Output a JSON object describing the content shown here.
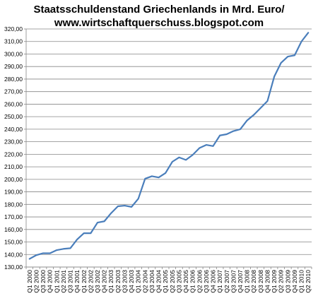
{
  "chart_data": {
    "type": "line",
    "title": "Staatsschuldenstand Griechenlands in Mrd. Euro/",
    "subtitle": "www.wirtschaftquerschuss.blogspot.com",
    "xlabel": "",
    "ylabel": "",
    "ylim": [
      130,
      320
    ],
    "y_tick_step": 10,
    "grid": "horizontal",
    "line_color": "#4a7ebb",
    "categories": [
      "Q1 2000",
      "Q2 2000",
      "Q3 2000",
      "Q4 2000",
      "Q1 2001",
      "Q2 2001",
      "Q3 2001",
      "Q4 2001",
      "Q1 2002",
      "Q2 2002",
      "Q3 2002",
      "Q4 2002",
      "Q1 2003",
      "Q2 2003",
      "Q3 2003",
      "Q4 2003",
      "Q1 2004",
      "Q2 2004",
      "Q3 2004",
      "Q4 2004",
      "Q1 2005",
      "Q2 2005",
      "Q3 2005",
      "Q4 2005",
      "Q1 2006",
      "Q2 2006",
      "Q3 2006",
      "Q4 2006",
      "Q1 2007",
      "Q2 2007",
      "Q3 2007",
      "Q4 2007",
      "Q1 2008",
      "Q2 2008",
      "Q3 2008",
      "Q4 2008",
      "Q1 2009",
      "Q2 2009",
      "Q3 2009",
      "Q4 2009",
      "Q1 2010",
      "Q2 2010"
    ],
    "values": [
      136.5,
      139.5,
      141.0,
      141.0,
      143.5,
      144.5,
      145.0,
      152.0,
      157.0,
      157.0,
      165.5,
      166.5,
      173.0,
      178.5,
      179.0,
      178.0,
      184.5,
      200.5,
      202.5,
      201.5,
      205.0,
      214.0,
      217.5,
      215.5,
      219.5,
      225.0,
      227.5,
      226.5,
      235.0,
      236.0,
      238.5,
      240.0,
      247.0,
      251.5,
      257.0,
      262.5,
      282.0,
      293.0,
      298.0,
      299.0,
      310.0,
      317.0
    ],
    "y_ticks": [
      "130,00",
      "140,00",
      "150,00",
      "160,00",
      "170,00",
      "180,00",
      "190,00",
      "200,00",
      "210,00",
      "220,00",
      "230,00",
      "240,00",
      "250,00",
      "260,00",
      "270,00",
      "280,00",
      "290,00",
      "300,00",
      "310,00",
      "320,00"
    ]
  }
}
